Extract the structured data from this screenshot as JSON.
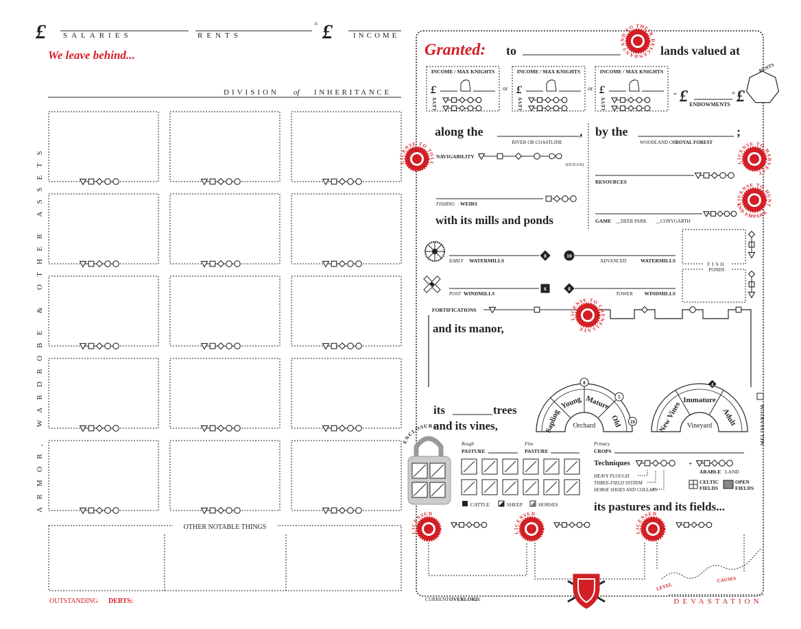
{
  "currency": "£",
  "ledger": {
    "salaries": "SALARIES",
    "rents": "RENTS",
    "equals": "=",
    "income": "INCOME"
  },
  "bequest": {
    "heading": "We leave behind...",
    "division": "DIVISION",
    "of": "of",
    "inheritance": "INHERITANCE",
    "assets": "ARMOR, WARDROBE & OTHER ASSETS",
    "other_notable_things": "OTHER NOTABLE THINGS",
    "outstanding": "OUTSTANDING",
    "debts": "DEBTS:"
  },
  "grant": {
    "granted": "Granted:",
    "to": "to",
    "lands_valued_at": "lands valued at",
    "descendants": "AND TO THEIR DESCENDANTS",
    "income_max_knights": "INCOME / MAX KNIGHTS",
    "or": "or",
    "levy": "LEVY",
    "minus": "-",
    "endowments": "ENDOWMENTS",
    "rents": "RENTS"
  },
  "waters": {
    "along_the": "along the",
    "comma": ",",
    "river_or_coastline": "RIVER OR COASTLINE",
    "by_the": "by the",
    "woodland_or": "WOODLAND OR",
    "royal_forest": "ROYAL FOREST",
    "semicolon": ";",
    "license_to_toll": "LICENSE TO TOLL",
    "navigability": "NAVIGABILITY",
    "ocean": "(OCEAN)",
    "fishing": "FISHING",
    "weirs": "WEIRS",
    "license_to_harvest": "LICENSE TO HARVEST",
    "resources": "RESOURCES",
    "license_to_hunt": "LICENSE TO HUNT",
    "and_empark": "AND EMPARK",
    "game": "GAME",
    "deer_park": "__DEER PARK",
    "conygarth": "__CONYGARTH"
  },
  "mills": {
    "heading": "with its mills and ponds",
    "early": "EARLY",
    "watermills": "WATERMILLS",
    "early_cost": 8,
    "advanced_cost": 10,
    "advanced": "ADVANCED",
    "post": "POST",
    "windmills": "WINDMILLS",
    "post_cost": 6,
    "tower_cost": 8,
    "tower": "TOWER",
    "fish": "FISH",
    "ponds": "PONDS"
  },
  "manor": {
    "fortifications": "FORTIFICATIONS",
    "license_to_crenellate": "LICENSE TO CRENELLATE",
    "heading": "and its manor,",
    "its": "its",
    "trees": "trees",
    "and_its_vines": "and its vines,",
    "orchard_stages": [
      "Sapling",
      "Young",
      "Mature",
      "Old"
    ],
    "orchard_costs": [
      8,
      5,
      10
    ],
    "orchard": "Orchard",
    "vine_stages": [
      "New Vines",
      "Immature",
      "Adult"
    ],
    "vine_cost": 4,
    "vineyard": "Vineyard",
    "melissarium": "MELISSARIUM"
  },
  "pastures": {
    "enclosure": "ENCLOSURE",
    "rough": "Rough",
    "fine": "Fine",
    "pasture": "PASTURE",
    "primary": "Primary",
    "crops": "CROPS",
    "techniques": "Techniques",
    "plus": "+",
    "arable": "ARABLE",
    "land": "LAND",
    "heavy_plough": "HEAVY PLOUGH",
    "three_field_system": "THREE-FIELD SYSTEM",
    "horse_shoes_and_collars": "HORSE SHOES AND COLLARS",
    "celtic": "CELTIC",
    "open": "OPEN",
    "fields": "FIELDS",
    "cattle": "CATTLE",
    "sheep": "SHEEP",
    "horses": "HORSES",
    "heading": "its pastures and its fields..."
  },
  "footer": {
    "licensed": "LICENSED",
    "causes": "CAUSES",
    "level": "LEVEL",
    "devastation": "DEVASTATION",
    "current": "CURRENT",
    "overlord": "OVERLORD:"
  }
}
